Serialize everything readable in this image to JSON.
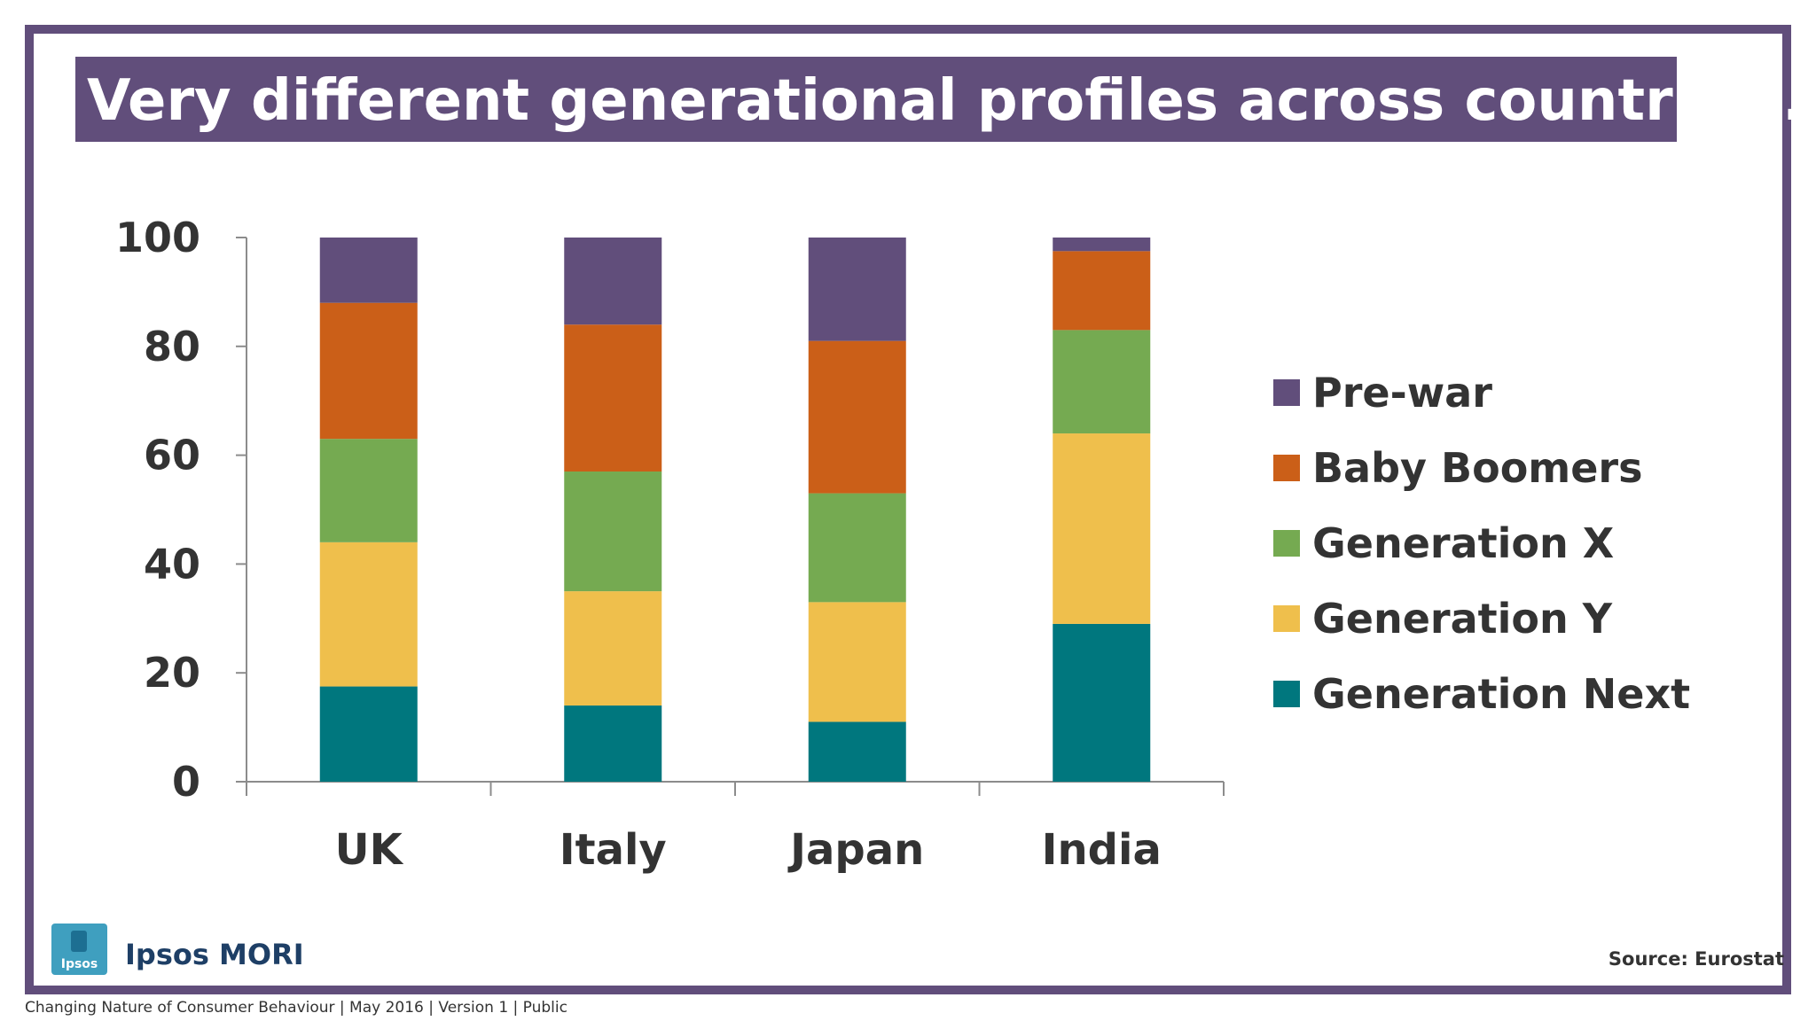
{
  "slide": {
    "title": "Very different generational profiles across countries…",
    "source": "Source: Eurostat",
    "brand_name": "Ipsos MORI",
    "logo_text": "Ipsos",
    "footer": "Changing Nature of Consumer Behaviour |  May 2016 |  Version 1  |  Public"
  },
  "colors": {
    "title_bar": "#614e7b",
    "Pre-war": "#614e7b",
    "Baby Boomers": "#cb5f18",
    "Generation X": "#75aa51",
    "Generation Y": "#efbf4c",
    "Generation Next": "#00777e"
  },
  "chart_data": {
    "type": "bar",
    "stacked": true,
    "title": "",
    "xlabel": "",
    "ylabel": "",
    "ylim": [
      0,
      100
    ],
    "yticks": [
      "0",
      "20",
      "40",
      "60",
      "80",
      "100"
    ],
    "grid": false,
    "legend_position": "right",
    "categories": [
      "UK",
      "Italy",
      "Japan",
      "India"
    ],
    "series": [
      {
        "name": "Generation Next",
        "values": [
          17.5,
          14,
          11,
          29
        ]
      },
      {
        "name": "Generation Y",
        "values": [
          26.5,
          21,
          22,
          35
        ]
      },
      {
        "name": "Generation X",
        "values": [
          19,
          22,
          20,
          19
        ]
      },
      {
        "name": "Baby Boomers",
        "values": [
          25,
          27,
          28,
          14.5
        ]
      },
      {
        "name": "Pre-war",
        "values": [
          12,
          16,
          19,
          2.5
        ]
      }
    ],
    "legend_order": [
      "Pre-war",
      "Baby Boomers",
      "Generation X",
      "Generation Y",
      "Generation Next"
    ]
  }
}
